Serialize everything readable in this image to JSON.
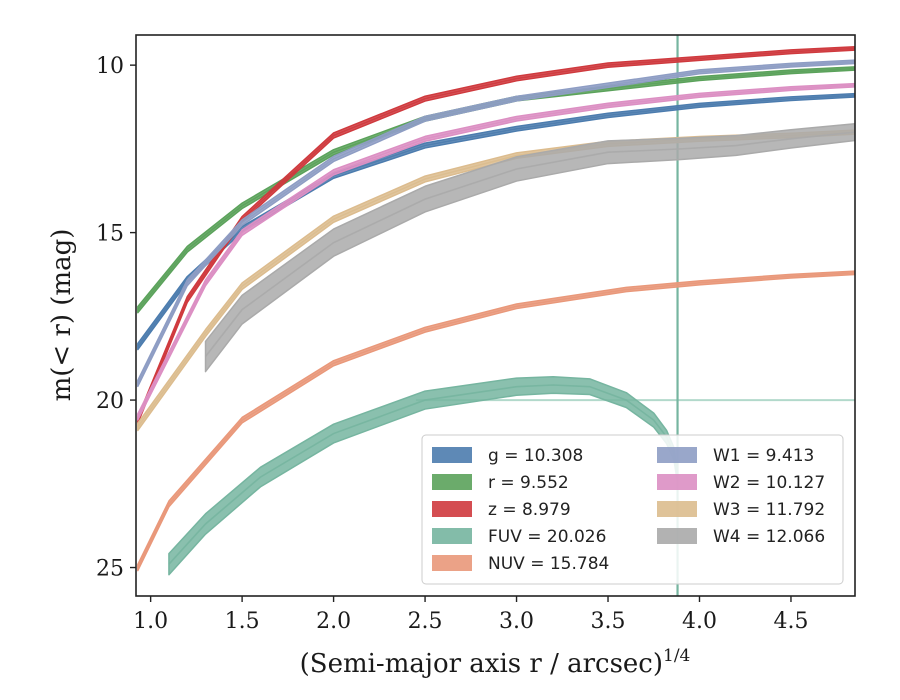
{
  "chart_data": {
    "type": "line",
    "title": "",
    "xlabel": "(Semi-major axis r / arcsec)",
    "xlabel_sup": "1/4",
    "ylabel": "m(< r) (mag)",
    "xlim": [
      0.92,
      4.85
    ],
    "ylim": [
      25.85,
      9.1
    ],
    "y_inverted": true,
    "x_ticks": [
      1.0,
      1.5,
      2.0,
      2.5,
      3.0,
      3.5,
      4.0,
      4.5
    ],
    "x_tick_labels": [
      "1.0",
      "1.5",
      "2.0",
      "2.5",
      "3.0",
      "3.5",
      "4.0",
      "4.5"
    ],
    "y_ticks": [
      10,
      15,
      20,
      25
    ],
    "y_tick_labels": [
      "10",
      "15",
      "20",
      "25"
    ],
    "grid": false,
    "legend_position": "lower-right",
    "legend_columns": 2,
    "vertical_line": {
      "x": 3.88,
      "color": "#76b5a0"
    },
    "horizontal_line": {
      "y": 20.0,
      "x_from": 2.45,
      "color": "#9fcfbe"
    },
    "series": [
      {
        "name": "g = 10.308",
        "color": "#4c7cae",
        "band": 0.1,
        "x": [
          0.93,
          1.2,
          1.5,
          2.0,
          2.5,
          3.0,
          3.5,
          4.0,
          4.5,
          4.85
        ],
        "y": [
          18.4,
          16.4,
          14.9,
          13.3,
          12.4,
          11.9,
          11.5,
          11.2,
          11.0,
          10.9
        ]
      },
      {
        "name": "r = 9.552",
        "color": "#5ba25b",
        "band": 0.1,
        "x": [
          0.93,
          1.2,
          1.5,
          2.0,
          2.5,
          3.0,
          3.5,
          4.0,
          4.5,
          4.85
        ],
        "y": [
          17.3,
          15.5,
          14.2,
          12.6,
          11.6,
          11.0,
          10.7,
          10.4,
          10.2,
          10.1
        ]
      },
      {
        "name": "z = 8.979",
        "color": "#cf3a3e",
        "band": 0.1,
        "x": [
          0.93,
          1.2,
          1.5,
          2.0,
          2.5,
          3.0,
          3.5,
          4.0,
          4.5,
          4.85
        ],
        "y": [
          20.6,
          17.0,
          14.6,
          12.1,
          11.0,
          10.4,
          10.0,
          9.8,
          9.6,
          9.5
        ]
      },
      {
        "name": "FUV = 20.026",
        "color": "#76b5a0",
        "band": 0.35,
        "x": [
          1.1,
          1.3,
          1.6,
          2.0,
          2.5,
          3.0,
          3.2,
          3.4,
          3.6,
          3.75,
          3.82,
          3.86,
          3.88
        ],
        "y": [
          24.9,
          23.7,
          22.3,
          21.0,
          20.0,
          19.6,
          19.55,
          19.6,
          20.0,
          20.6,
          21.1,
          21.6,
          22.3
        ]
      },
      {
        "name": "NUV = 15.784",
        "color": "#e9987a",
        "band": 0.1,
        "x": [
          0.93,
          1.1,
          1.5,
          2.0,
          2.5,
          3.0,
          3.6,
          4.0,
          4.5,
          4.85
        ],
        "y": [
          25.0,
          23.1,
          20.6,
          18.9,
          17.9,
          17.2,
          16.7,
          16.5,
          16.3,
          16.2
        ]
      },
      {
        "name": "W1 = 9.413",
        "color": "#8e9dc4",
        "band": 0.1,
        "x": [
          0.93,
          1.2,
          1.5,
          2.0,
          2.5,
          3.0,
          3.5,
          4.0,
          4.5,
          4.85
        ],
        "y": [
          19.5,
          16.5,
          14.7,
          12.8,
          11.6,
          11.0,
          10.6,
          10.2,
          10.0,
          9.9
        ]
      },
      {
        "name": "W2 = 10.127",
        "color": "#dc8fc3",
        "band": 0.1,
        "x": [
          0.93,
          1.3,
          1.5,
          2.0,
          2.5,
          3.0,
          3.5,
          4.0,
          4.5,
          4.85
        ],
        "y": [
          20.5,
          16.5,
          15.0,
          13.2,
          12.2,
          11.6,
          11.2,
          10.9,
          10.7,
          10.6
        ]
      },
      {
        "name": "W3 = 11.792",
        "color": "#dcbc8e",
        "band": 0.12,
        "x": [
          0.93,
          1.3,
          1.5,
          2.0,
          2.5,
          3.0,
          3.5,
          4.0,
          4.5,
          4.85
        ],
        "y": [
          20.8,
          18.0,
          16.6,
          14.6,
          13.4,
          12.7,
          12.35,
          12.2,
          12.1,
          12.0
        ]
      },
      {
        "name": "W4 = 12.066",
        "color": "#aaaaaa",
        "band": 0.5,
        "x": [
          1.3,
          1.5,
          2.0,
          2.5,
          3.0,
          3.5,
          3.9,
          4.2,
          4.5,
          4.85
        ],
        "y": [
          18.7,
          17.3,
          15.3,
          14.0,
          13.1,
          12.6,
          12.5,
          12.4,
          12.2,
          12.0
        ]
      }
    ]
  }
}
